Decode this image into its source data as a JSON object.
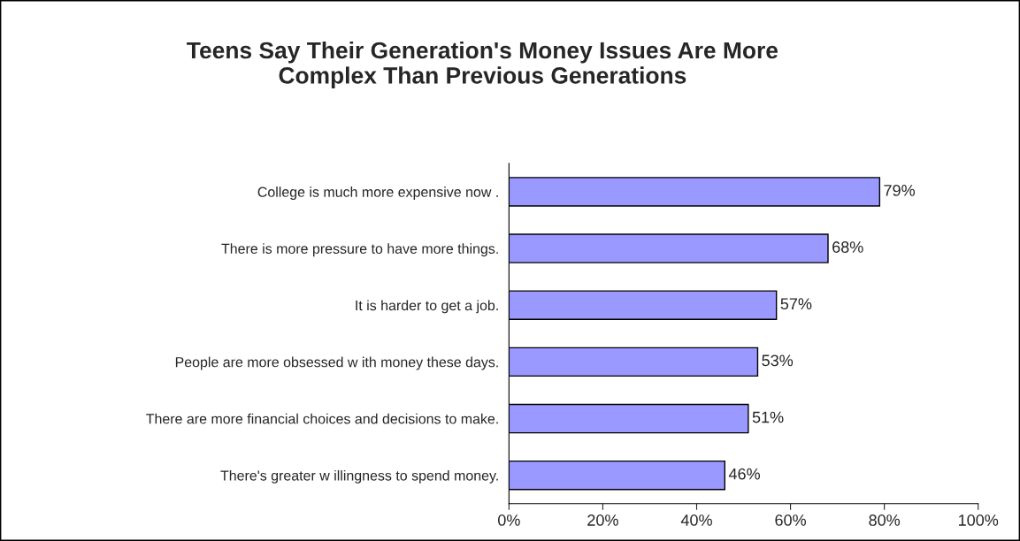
{
  "chart_data": {
    "type": "bar",
    "orientation": "horizontal",
    "title": "Teens Say Their Generation's Money Issues Are More\nComplex Than Previous Generations",
    "categories": [
      "College is much more expensive now .",
      "There is more pressure to have more things.",
      "It is harder to get a job.",
      "People are more obsessed w ith money these days.",
      "There are more financial choices and decisions to make.",
      "There's greater w illingness to spend money."
    ],
    "values": [
      79,
      68,
      57,
      53,
      51,
      46
    ],
    "value_labels": [
      "79%",
      "68%",
      "57%",
      "53%",
      "51%",
      "46%"
    ],
    "color": "#9999ff",
    "xlim": [
      0,
      100
    ],
    "xticks": [
      {
        "value": 0,
        "label": "0%"
      },
      {
        "value": 20,
        "label": "20%"
      },
      {
        "value": 40,
        "label": "40%"
      },
      {
        "value": 60,
        "label": "60%"
      },
      {
        "value": 80,
        "label": "80%"
      },
      {
        "value": 100,
        "label": "100%"
      }
    ],
    "grid": false,
    "legend": false
  }
}
